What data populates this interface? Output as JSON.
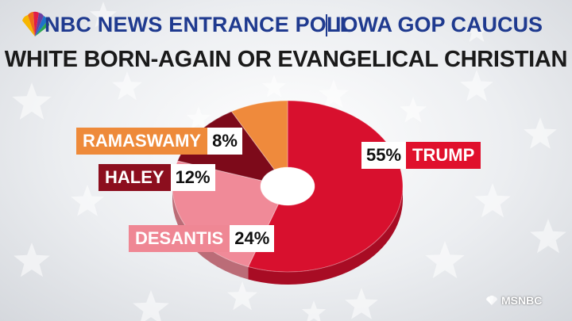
{
  "header": {
    "network_title": "NBC NEWS ENTRANCE POLL",
    "race_title": "IOWA GOP CAUCUS",
    "logo_icon": "nbc-peacock-icon"
  },
  "subtitle": "WHITE BORN-AGAIN OR EVANGELICAL CHRISTIAN",
  "chart_data": {
    "type": "pie",
    "style": "donut",
    "title": "WHITE BORN-AGAIN OR EVANGELICAL CHRISTIAN",
    "slices": [
      {
        "name": "TRUMP",
        "value": 55,
        "label": "55%",
        "color": "#d8102e",
        "label_color": "#e0102c"
      },
      {
        "name": "DESANTIS",
        "value": 24,
        "label": "24%",
        "color": "#f08a98",
        "label_color": "#ef8794"
      },
      {
        "name": "HALEY",
        "value": 12,
        "label": "12%",
        "color": "#7d0a1a",
        "label_color": "#8c0e1e"
      },
      {
        "name": "RAMASWAMY",
        "value": 8,
        "label": "8%",
        "color": "#ef8a3c",
        "label_color": "#ee8a3a"
      }
    ]
  },
  "labels": {
    "trump": {
      "name": "TRUMP",
      "pct": "55%"
    },
    "desantis": {
      "name": "DESANTIS",
      "pct": "24%"
    },
    "haley": {
      "name": "HALEY",
      "pct": "12%"
    },
    "ramaswamy": {
      "name": "RAMASWAMY",
      "pct": "8%"
    }
  },
  "footer": {
    "brand": "MSNBC",
    "logo_icon": "msnbc-peacock-icon"
  }
}
